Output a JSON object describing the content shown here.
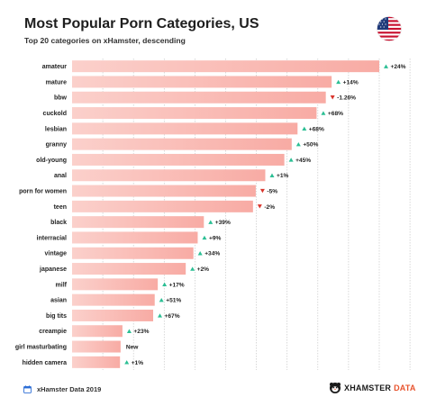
{
  "header": {
    "title": "Most Popular Porn Categories, US",
    "subtitle": "Top 20 categories on xHamster, descending"
  },
  "footer": {
    "source": "xHamster Data 2019",
    "brand_main": "XHAMSTER",
    "brand_accent": "DATA"
  },
  "colors": {
    "bar": "#f8aba4",
    "bar_light": "#fbd0cb",
    "up": "#2bbf94",
    "down": "#d9342b",
    "brand_accent": "#e8542e"
  },
  "icons": {
    "flag": "us-flag-icon",
    "calendar": "calendar-icon",
    "logo": "hamster-logo-icon"
  },
  "chart_data": {
    "type": "bar",
    "orientation": "horizontal",
    "title": "Most Popular Porn Categories, US",
    "subtitle": "Top 20 categories on xHamster, descending",
    "xlabel": "",
    "ylabel": "",
    "grid": true,
    "categories": [
      "amateur",
      "mature",
      "bbw",
      "cuckold",
      "lesbian",
      "granny",
      "old-young",
      "anal",
      "porn for women",
      "teen",
      "black",
      "interracial",
      "vintage",
      "japanese",
      "milf",
      "asian",
      "big tits",
      "creampie",
      "girl masturbating",
      "hidden camera"
    ],
    "values": [
      100,
      84.5,
      82.6,
      79.6,
      73.4,
      71.5,
      69.1,
      62.9,
      59.8,
      58.9,
      42.9,
      40.9,
      39.5,
      37.0,
      27.9,
      26.9,
      26.4,
      16.4,
      15.8,
      15.6
    ],
    "changes": [
      "+24%",
      "+14%",
      "-1.26%",
      "+68%",
      "+68%",
      "+50%",
      "+45%",
      "+1%",
      "-5%",
      "-2%",
      "+39%",
      "+9%",
      "+34%",
      "+2%",
      "+17%",
      "+51%",
      "+67%",
      "+23%",
      "New",
      "+1%"
    ],
    "direction": [
      "up",
      "up",
      "down",
      "up",
      "up",
      "up",
      "up",
      "up",
      "down",
      "down",
      "up",
      "up",
      "up",
      "up",
      "up",
      "up",
      "up",
      "up",
      "new",
      "up"
    ],
    "xlim": [
      0,
      100
    ]
  }
}
